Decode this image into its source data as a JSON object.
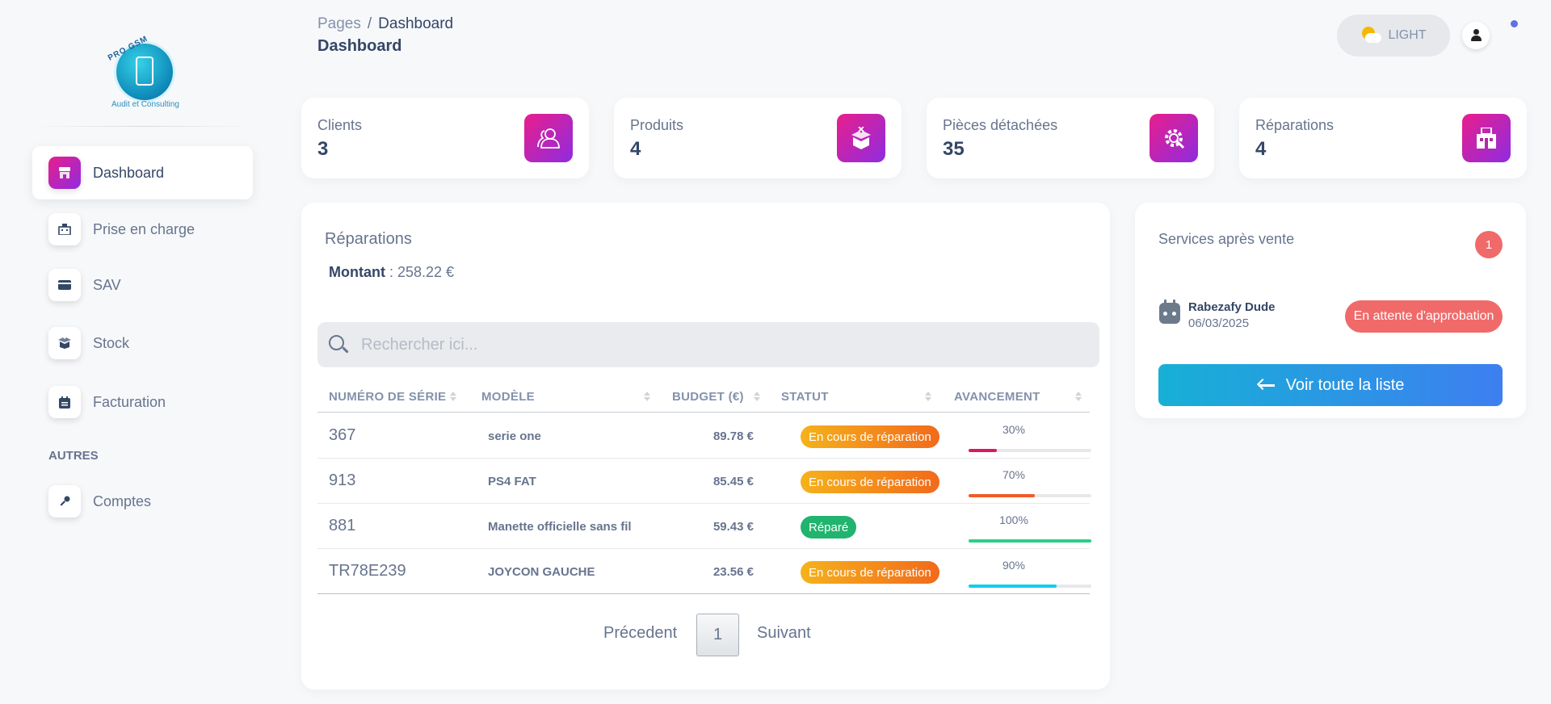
{
  "logo": {
    "brand": "PRO GSM",
    "tagline": "Audit et Consulting"
  },
  "sidebar": {
    "items": [
      {
        "label": "Dashboard",
        "icon": "shop-icon",
        "active": true
      },
      {
        "label": "Prise en charge",
        "icon": "building-icon",
        "active": false
      },
      {
        "label": "SAV",
        "icon": "credit-card-icon",
        "active": false
      },
      {
        "label": "Stock",
        "icon": "box-icon",
        "active": false
      },
      {
        "label": "Facturation",
        "icon": "calendar-icon",
        "active": false
      }
    ],
    "section_title": "AUTRES",
    "other_items": [
      {
        "label": "Comptes",
        "icon": "key-icon"
      }
    ]
  },
  "header": {
    "breadcrumb_root": "Pages",
    "breadcrumb_sep": "/",
    "breadcrumb_current": "Dashboard",
    "title": "Dashboard",
    "theme_label": "LIGHT"
  },
  "stats": [
    {
      "label": "Clients",
      "value": "3",
      "icon": "users-icon"
    },
    {
      "label": "Produits",
      "value": "4",
      "icon": "box-open-icon"
    },
    {
      "label": "Pièces détachées",
      "value": "35",
      "icon": "gear-icon"
    },
    {
      "label": "Réparations",
      "value": "4",
      "icon": "building-icon"
    }
  ],
  "repairs": {
    "title": "Réparations",
    "amount_label": "Montant",
    "amount_value": " : 258.22 €",
    "search_placeholder": "Rechercher ici...",
    "columns": [
      "NUMÉRO DE SÉRIE",
      "MODÈLE",
      "BUDGET (€)",
      "STATUT",
      "AVANCEMENT"
    ],
    "rows": [
      {
        "serial": "367",
        "model": "serie one",
        "budget": "89.78 €",
        "status": "En cours de réparation",
        "status_color": "#f39a1b",
        "progress_label": "30%",
        "progress": 30,
        "bar_color": "#d81b60"
      },
      {
        "serial": "913",
        "model": "PS4 FAT",
        "budget": "85.45 €",
        "status": "En cours de réparation",
        "status_color": "#f39a1b",
        "progress_label": "70%",
        "progress": 70,
        "bar_color": "#f15a29"
      },
      {
        "serial": "881",
        "model": "Manette officielle sans fil",
        "budget": "59.43 €",
        "status": "Réparé",
        "status_color": "#20b46f",
        "progress_label": "100%",
        "progress": 100,
        "bar_color": "#2dce89"
      },
      {
        "serial": "TR78E239",
        "model": "JOYCON GAUCHE",
        "budget": "23.56 €",
        "status": "En cours de réparation",
        "status_color": "#f39a1b",
        "progress_label": "90%",
        "progress": 90,
        "bar_color": "#11cdef"
      }
    ],
    "pagination": {
      "prev": "Précedent",
      "page": "1",
      "next": "Suivant"
    }
  },
  "sav": {
    "title": "Services après vente",
    "count": "1",
    "entry": {
      "name": "Rabezafy Dude",
      "date": "06/03/2025",
      "status": "En attente d'approbation"
    },
    "button_label": "Voir toute la liste"
  }
}
